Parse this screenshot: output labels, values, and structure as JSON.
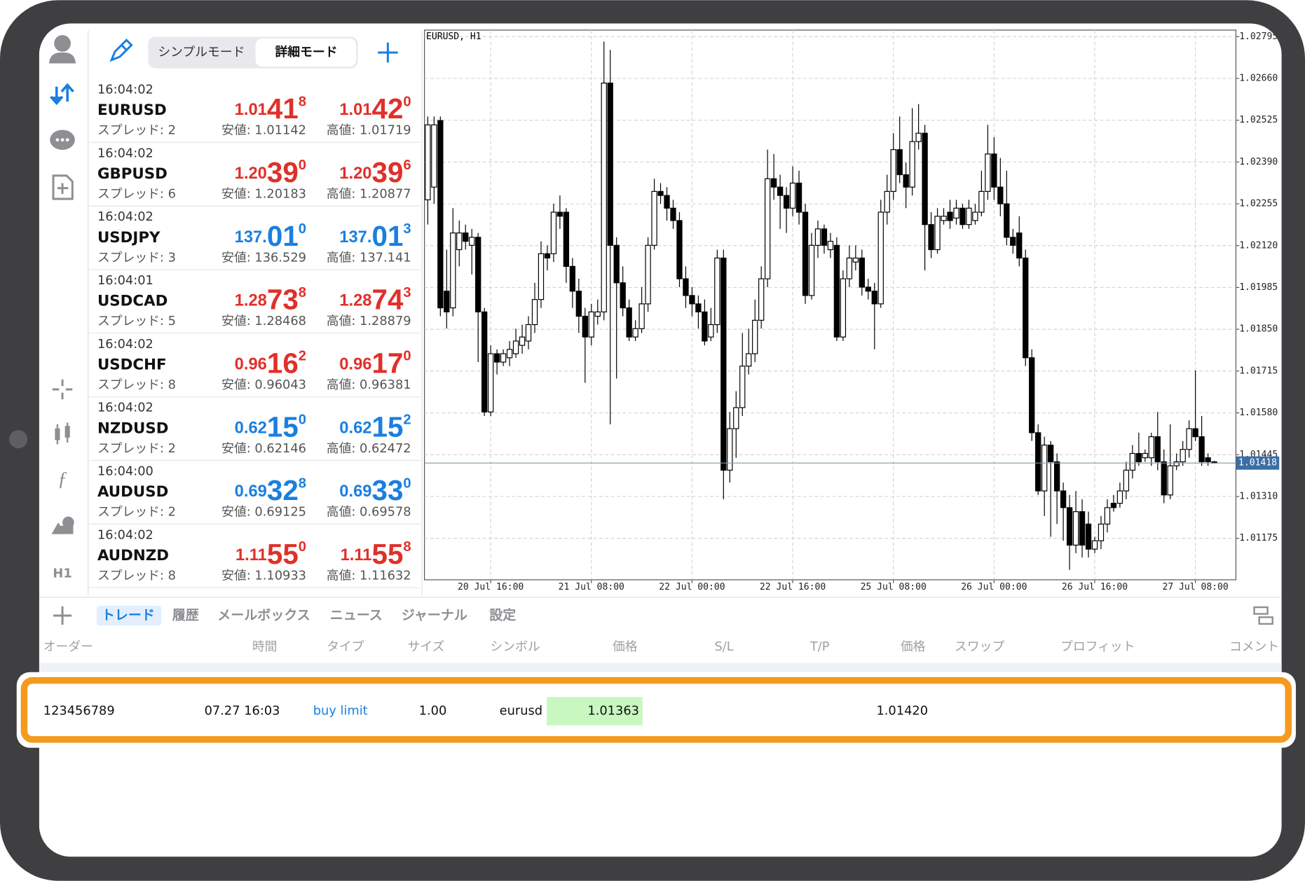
{
  "toolbar": {
    "mode_simple": "シンプルモード",
    "mode_detail": "詳細モード"
  },
  "sidebar": {
    "timeframe": "H1"
  },
  "quotes": [
    {
      "time": "16:04:02",
      "symbol": "EURUSD",
      "spread": "スプレッド: 2",
      "bid": [
        "1.01",
        "41",
        "8"
      ],
      "ask": [
        "1.01",
        "42",
        "0"
      ],
      "low": "安値: 1.01142",
      "high": "高値: 1.01719",
      "color": "#e0302a"
    },
    {
      "time": "16:04:02",
      "symbol": "GBPUSD",
      "spread": "スプレッド: 6",
      "bid": [
        "1.20",
        "39",
        "0"
      ],
      "ask": [
        "1.20",
        "39",
        "6"
      ],
      "low": "安値: 1.20183",
      "high": "高値: 1.20877",
      "color": "#e0302a"
    },
    {
      "time": "16:04:02",
      "symbol": "USDJPY",
      "spread": "スプレッド: 3",
      "bid": [
        "137.",
        "01",
        "0"
      ],
      "ask": [
        "137.",
        "01",
        "3"
      ],
      "low": "安値: 136.529",
      "high": "高値: 137.141",
      "color": "#1a7fe0"
    },
    {
      "time": "16:04:01",
      "symbol": "USDCAD",
      "spread": "スプレッド: 5",
      "bid": [
        "1.28",
        "73",
        "8"
      ],
      "ask": [
        "1.28",
        "74",
        "3"
      ],
      "low": "安値: 1.28468",
      "high": "高値: 1.28879",
      "color": "#e0302a"
    },
    {
      "time": "16:04:02",
      "symbol": "USDCHF",
      "spread": "スプレッド: 8",
      "bid": [
        "0.96",
        "16",
        "2"
      ],
      "ask": [
        "0.96",
        "17",
        "0"
      ],
      "low": "安値: 0.96043",
      "high": "高値: 0.96381",
      "color": "#e0302a"
    },
    {
      "time": "16:04:02",
      "symbol": "NZDUSD",
      "spread": "スプレッド: 2",
      "bid": [
        "0.62",
        "15",
        "0"
      ],
      "ask": [
        "0.62",
        "15",
        "2"
      ],
      "low": "安値: 0.62146",
      "high": "高値: 0.62472",
      "color": "#1a7fe0"
    },
    {
      "time": "16:04:00",
      "symbol": "AUDUSD",
      "spread": "スプレッド: 2",
      "bid": [
        "0.69",
        "32",
        "8"
      ],
      "ask": [
        "0.69",
        "33",
        "0"
      ],
      "low": "安値: 0.69125",
      "high": "高値: 0.69578",
      "color": "#1a7fe0"
    },
    {
      "time": "16:04:02",
      "symbol": "AUDNZD",
      "spread": "スプレッド: 8",
      "bid": [
        "1.11",
        "55",
        "0"
      ],
      "ask": [
        "1.11",
        "55",
        "8"
      ],
      "low": "安値: 1.10933",
      "high": "高値: 1.11632",
      "color": "#e0302a"
    }
  ],
  "chart_data": {
    "type": "candlestick",
    "title": "EURUSD, H1",
    "up_color": "#ffffff",
    "down_color": "#000000",
    "grid": true,
    "ylim": [
      1.01041,
      1.02816
    ],
    "yticks": [
      1.02795,
      {
        "value": 1.0266,
        "label": "1.02660"
      },
      1.02525,
      {
        "value": 1.0239,
        "label": "1.02390"
      },
      1.02255,
      {
        "value": 1.0212,
        "label": "1.02120"
      },
      1.01985,
      {
        "value": 1.0185,
        "label": "1.01850"
      },
      1.01715,
      {
        "value": 1.0158,
        "label": "1.01580"
      },
      1.01445,
      {
        "value": 1.0131,
        "label": "1.01310"
      },
      1.01175
    ],
    "xticks": [
      {
        "value": 10,
        "label": "20 Jul 16:00"
      },
      {
        "value": 26,
        "label": "21 Jul 08:00"
      },
      {
        "value": 42,
        "label": "22 Jul 00:00"
      },
      {
        "value": 58,
        "label": "22 Jul 16:00"
      },
      {
        "value": 74,
        "label": "25 Jul 08:00"
      },
      {
        "value": 90,
        "label": "26 Jul 00:00"
      },
      {
        "value": 106,
        "label": "26 Jul 16:00"
      },
      {
        "value": 122,
        "label": "27 Jul 08:00"
      }
    ],
    "last_price": 1.01418,
    "ohlc": [
      [
        1.02268,
        1.02537,
        1.02188,
        1.0251
      ],
      [
        1.02309,
        1.02537,
        1.02255,
        1.0251
      ],
      [
        1.02524,
        1.02537,
        1.01892,
        1.01919
      ],
      [
        1.01973,
        1.02107,
        1.01852,
        1.01906
      ],
      [
        1.01919,
        1.02241,
        1.01892,
        1.02161
      ],
      [
        1.02107,
        1.02201,
        1.02053,
        1.02161
      ],
      [
        1.02161,
        1.02188,
        1.02107,
        1.02134
      ],
      [
        1.02121,
        1.02174,
        1.02027,
        1.02147
      ],
      [
        1.02147,
        1.02161,
        1.01744,
        1.01906
      ],
      [
        1.01906,
        1.01919,
        1.0157,
        1.01583
      ],
      [
        1.01583,
        1.01798,
        1.0157,
        1.01771
      ],
      [
        1.01771,
        1.01785,
        1.01704,
        1.01744
      ],
      [
        1.01744,
        1.01785,
        1.01731,
        1.01771
      ],
      [
        1.01758,
        1.01812,
        1.01731,
        1.01785
      ],
      [
        1.01771,
        1.01852,
        1.01758,
        1.01812
      ],
      [
        1.01798,
        1.01865,
        1.01771,
        1.01825
      ],
      [
        1.01812,
        1.01892,
        1.01785,
        1.01865
      ],
      [
        1.01865,
        1.02,
        1.01838,
        1.01946
      ],
      [
        1.01946,
        1.02134,
        1.01919,
        1.02094
      ],
      [
        1.02094,
        1.02121,
        1.0204,
        1.0208
      ],
      [
        1.02094,
        1.02255,
        1.02067,
        1.02228
      ],
      [
        1.02228,
        1.02282,
        1.02174,
        1.02215
      ],
      [
        1.02228,
        1.02241,
        1.02,
        1.02053
      ],
      [
        1.02053,
        1.0208,
        1.01919,
        1.01973
      ],
      [
        1.01973,
        1.02013,
        1.01838,
        1.01892
      ],
      [
        1.01892,
        1.01919,
        1.01677,
        1.01825
      ],
      [
        1.01825,
        1.01932,
        1.01798,
        1.01906
      ],
      [
        1.01892,
        1.01946,
        1.01865,
        1.01906
      ],
      [
        1.01906,
        1.02779,
        1.01879,
        1.02645
      ],
      [
        1.02645,
        1.02752,
        1.01543,
        1.02121
      ],
      [
        1.02121,
        1.02147,
        1.01691,
        1.02
      ],
      [
        1.02,
        1.02053,
        1.01892,
        1.01919
      ],
      [
        1.01919,
        1.01946,
        1.01812,
        1.01825
      ],
      [
        1.01825,
        1.01879,
        1.01812,
        1.01852
      ],
      [
        1.01852,
        1.01986,
        1.01838,
        1.01932
      ],
      [
        1.01932,
        1.02147,
        1.01906,
        1.02121
      ],
      [
        1.02121,
        1.02336,
        1.02107,
        1.02295
      ],
      [
        1.02295,
        1.02322,
        1.02255,
        1.02282
      ],
      [
        1.02282,
        1.02309,
        1.02201,
        1.02241
      ],
      [
        1.02241,
        1.02268,
        1.02174,
        1.02201
      ],
      [
        1.02201,
        1.02228,
        1.01986,
        1.02013
      ],
      [
        1.02013,
        1.02053,
        1.01919,
        1.01959
      ],
      [
        1.01959,
        1.01986,
        1.01892,
        1.01932
      ],
      [
        1.01932,
        1.01959,
        1.01852,
        1.01906
      ],
      [
        1.01906,
        1.01946,
        1.01798,
        1.01812
      ],
      [
        1.01825,
        1.01919,
        1.01812,
        1.01865
      ],
      [
        1.01865,
        1.02107,
        1.01838,
        1.0208
      ],
      [
        1.0208,
        1.02107,
        1.01301,
        1.01395
      ],
      [
        1.01395,
        1.01583,
        1.01355,
        1.01529
      ],
      [
        1.01529,
        1.0165,
        1.01435,
        1.01597
      ],
      [
        1.01597,
        1.01838,
        1.0157,
        1.01731
      ],
      [
        1.01731,
        1.01852,
        1.01704,
        1.01771
      ],
      [
        1.01771,
        1.01946,
        1.01744,
        1.01879
      ],
      [
        1.01879,
        1.02053,
        1.01852,
        1.02013
      ],
      [
        1.02013,
        1.0243,
        1.01986,
        1.02336
      ],
      [
        1.02336,
        1.02416,
        1.02268,
        1.02309
      ],
      [
        1.02309,
        1.02349,
        1.02174,
        1.02282
      ],
      [
        1.02282,
        1.02309,
        1.02161,
        1.02241
      ],
      [
        1.02241,
        1.02376,
        1.02215,
        1.02322
      ],
      [
        1.02322,
        1.02362,
        1.02188,
        1.02228
      ],
      [
        1.02228,
        1.02255,
        1.01932,
        1.01959
      ],
      [
        1.01959,
        1.02161,
        1.01946,
        1.02121
      ],
      [
        1.02121,
        1.02201,
        1.0208,
        1.02174
      ],
      [
        1.02174,
        1.02188,
        1.02094,
        1.02121
      ],
      [
        1.02107,
        1.02161,
        1.0208,
        1.02134
      ],
      [
        1.02121,
        1.02147,
        1.01812,
        1.01825
      ],
      [
        1.01825,
        1.0204,
        1.01812,
        1.02013
      ],
      [
        1.02013,
        1.02121,
        1.01986,
        1.0208
      ],
      [
        1.02067,
        1.02121,
        1.0204,
        1.0208
      ],
      [
        1.0208,
        1.02107,
        1.01959,
        1.01986
      ],
      [
        1.01986,
        1.02013,
        1.01946,
        1.01973
      ],
      [
        1.01973,
        1.02,
        1.01785,
        1.01932
      ],
      [
        1.01932,
        1.02268,
        1.01919,
        1.02228
      ],
      [
        1.02228,
        1.02349,
        1.02188,
        1.02295
      ],
      [
        1.02295,
        1.02483,
        1.02268,
        1.0243
      ],
      [
        1.0243,
        1.02537,
        1.02322,
        1.02349
      ],
      [
        1.02349,
        1.02389,
        1.02241,
        1.02309
      ],
      [
        1.02309,
        1.02564,
        1.02282,
        1.02456
      ],
      [
        1.02456,
        1.02577,
        1.0243,
        1.02483
      ],
      [
        1.02483,
        1.0251,
        1.0204,
        1.02188
      ],
      [
        1.02188,
        1.02228,
        1.0208,
        1.02107
      ],
      [
        1.02107,
        1.02241,
        1.02094,
        1.02215
      ],
      [
        1.02201,
        1.02241,
        1.02188,
        1.02215
      ],
      [
        1.02228,
        1.02268,
        1.02174,
        1.02201
      ],
      [
        1.02209,
        1.02268,
        1.02188,
        1.02241
      ],
      [
        1.02241,
        1.02255,
        1.02174,
        1.02188
      ],
      [
        1.02188,
        1.02268,
        1.02174,
        1.02241
      ],
      [
        1.02201,
        1.02255,
        1.02188,
        1.02228
      ],
      [
        1.02228,
        1.02362,
        1.02215,
        1.02295
      ],
      [
        1.02295,
        1.0251,
        1.02268,
        1.02416
      ],
      [
        1.02416,
        1.0247,
        1.02268,
        1.02309
      ],
      [
        1.02309,
        1.02403,
        1.02215,
        1.02255
      ],
      [
        1.02255,
        1.02362,
        1.02121,
        1.02147
      ],
      [
        1.02147,
        1.02174,
        1.02094,
        1.02121
      ],
      [
        1.02161,
        1.02215,
        1.02053,
        1.0208
      ],
      [
        1.0208,
        1.02107,
        1.01731,
        1.01758
      ],
      [
        1.01758,
        1.01785,
        1.01489,
        1.01516
      ],
      [
        1.01516,
        1.01543,
        1.01315,
        1.01328
      ],
      [
        1.01328,
        1.01503,
        1.01247,
        1.01476
      ],
      [
        1.01476,
        1.01489,
        1.0118,
        1.01422
      ],
      [
        1.01422,
        1.01449,
        1.01221,
        1.01328
      ],
      [
        1.01328,
        1.01355,
        1.01167,
        1.01274
      ],
      [
        1.01274,
        1.01315,
        1.01073,
        1.01153
      ],
      [
        1.01153,
        1.01328,
        1.01127,
        1.01261
      ],
      [
        1.01261,
        1.01301,
        1.01113,
        1.01153
      ],
      [
        1.01221,
        1.01261,
        1.01113,
        1.0114
      ],
      [
        1.0114,
        1.0118,
        1.01127,
        1.01167
      ],
      [
        1.01167,
        1.01247,
        1.0114,
        1.01221
      ],
      [
        1.01221,
        1.01301,
        1.01194,
        1.01274
      ],
      [
        1.01288,
        1.01315,
        1.01261,
        1.01274
      ],
      [
        1.01288,
        1.01355,
        1.01274,
        1.01328
      ],
      [
        1.01328,
        1.01422,
        1.01301,
        1.01395
      ],
      [
        1.01395,
        1.01476,
        1.01368,
        1.01449
      ],
      [
        1.01449,
        1.01516,
        1.01409,
        1.01422
      ],
      [
        1.01435,
        1.01462,
        1.01422,
        1.01449
      ],
      [
        1.01435,
        1.01516,
        1.01409,
        1.01503
      ],
      [
        1.01503,
        1.01583,
        1.01395,
        1.01422
      ],
      [
        1.01422,
        1.01462,
        1.01288,
        1.01315
      ],
      [
        1.01315,
        1.01543,
        1.01301,
        1.01409
      ],
      [
        1.01409,
        1.01449,
        1.01395,
        1.01422
      ],
      [
        1.01422,
        1.01489,
        1.01409,
        1.01462
      ],
      [
        1.01462,
        1.01556,
        1.01435,
        1.01529
      ],
      [
        1.01529,
        1.01717,
        1.01489,
        1.01503
      ],
      [
        1.01503,
        1.0157,
        1.01409,
        1.01422
      ],
      [
        1.01435,
        1.01449,
        1.01409,
        1.01422
      ],
      [
        1.01422,
        1.01425,
        1.01418,
        1.01418
      ]
    ]
  },
  "tabs": [
    "トレード",
    "履歴",
    "メールボックス",
    "ニュース",
    "ジャーナル",
    "設定"
  ],
  "active_tab": 0,
  "orders": {
    "columns": [
      "オーダー",
      "時間",
      "タイプ",
      "サイズ",
      "シンボル",
      "価格",
      "S/L",
      "T/P",
      "価格",
      "スワップ",
      "プロフィット",
      "コメント"
    ],
    "row": {
      "order": "123456789",
      "time": "07.27 16:03",
      "type": "buy limit",
      "size": "1.00",
      "symbol": "eurusd",
      "price": "1.01363",
      "current_price": "1.01420"
    }
  }
}
